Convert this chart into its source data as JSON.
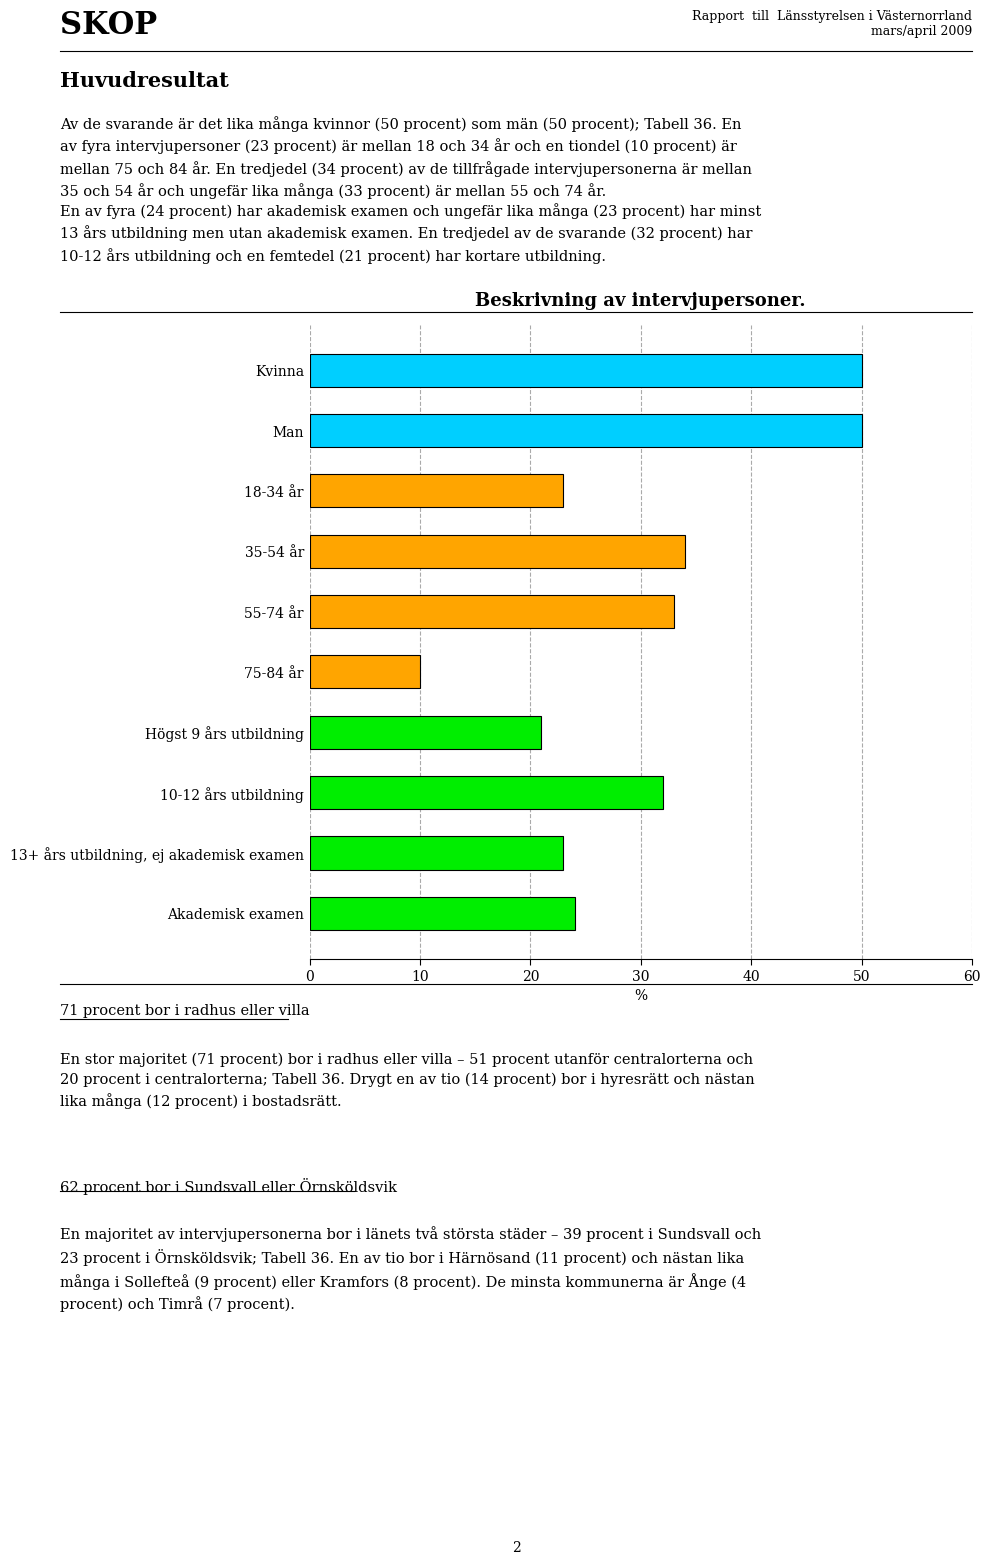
{
  "title": "Beskrivning av intervjupersoner.",
  "categories": [
    "Kvinna",
    "Man",
    "18-34 år",
    "35-54 år",
    "55-74 år",
    "75-84 år",
    "Högst 9 års utbildning",
    "10-12 års utbildning",
    "13+ års utbildning, ej akademisk examen",
    "Akademisk examen"
  ],
  "values": [
    50,
    50,
    23,
    34,
    33,
    10,
    21,
    32,
    23,
    24
  ],
  "colors": [
    "#00CFFF",
    "#00CFFF",
    "#FFA500",
    "#FFA500",
    "#FFA500",
    "#FFA500",
    "#00EE00",
    "#00EE00",
    "#00EE00",
    "#00EE00"
  ],
  "xlabel": "%",
  "xlim": [
    0,
    60
  ],
  "xticks": [
    0,
    10,
    20,
    30,
    40,
    50,
    60
  ],
  "header_skop": "SKOP",
  "header_report": "Rapport  till  Länsstyrelsen i Västernorrland\nmars/april 2009",
  "section1_title": "Huvudresultat",
  "section1_text": "Av de svarande är det lika många kvinnor (50 procent) som män (50 procent); Tabell 36. En\nav fyra intervjupersoner (23 procent) är mellan 18 och 34 år och en tiondel (10 procent) är\nmellan 75 och 84 år. En tredjedel (34 procent) av de tillfrågade intervjupersonerna är mellan\n35 och 54 år och ungefär lika många (33 procent) är mellan 55 och 74 år.",
  "section2_text": "En av fyra (24 procent) har akademisk examen och ungefär lika många (23 procent) har minst\n13 års utbildning men utan akademisk examen. En tredjedel av de svarande (32 procent) har\n10-12 års utbildning och en femtedel (21 procent) har kortare utbildning.",
  "section3_title": "71 procent bor i radhus eller villa",
  "section3_text": "En stor majoritet (71 procent) bor i radhus eller villa – 51 procent utanför centralorterna och\n20 procent i centralorterna; Tabell 36. Drygt en av tio (14 procent) bor i hyresrätt och nästan\nlika många (12 procent) i bostadsrätt.",
  "section4_title": "62 procent bor i Sundsvall eller Örnsköldsvik",
  "section4_text": "En majoritet av intervjupersonerna bor i länets två största städer – 39 procent i Sundsvall och\n23 procent i Örnsköldsvik; Tabell 36. En av tio bor i Härnösand (11 procent) och nästan lika\nmånga i Sollefteå (9 procent) eller Kramfors (8 procent). De minsta kommunerna är Ånge (4\nprocent) och Timrå (7 procent).",
  "page_number": "2",
  "bar_edge_color": "#000000",
  "bar_linewidth": 0.8,
  "grid_color": "#aaaaaa",
  "bg_color": "#ffffff"
}
